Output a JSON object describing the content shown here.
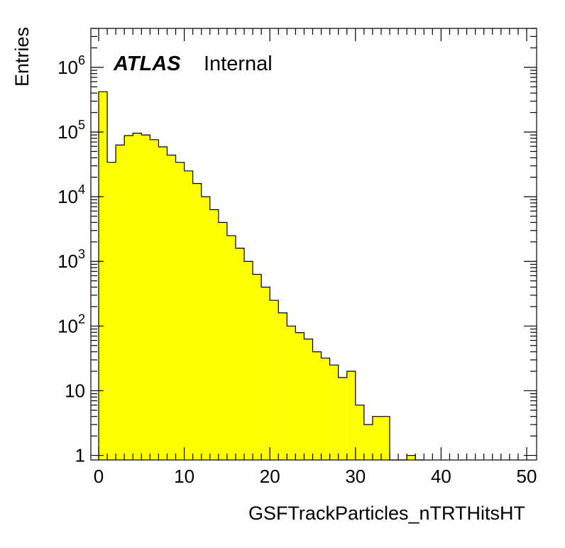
{
  "chart_data": {
    "type": "bar",
    "histogram": true,
    "fill_color": "#ffff00",
    "line_color": "#000000",
    "xlabel": "GSFTrackParticles_nTRTHitsHT",
    "ylabel": "Entries",
    "xlim": [
      0,
      50
    ],
    "ylim": [
      0.85,
      4000000
    ],
    "log_y": true,
    "grid": false,
    "bin_width": 1,
    "x_ticks": [
      "0",
      "10",
      "20",
      "30",
      "40",
      "50"
    ],
    "y_ticks": [
      {
        "value": 1,
        "base": "1",
        "exp": ""
      },
      {
        "value": 10,
        "base": "10",
        "exp": ""
      },
      {
        "value": 100,
        "base": "10",
        "exp": "2"
      },
      {
        "value": 1000,
        "base": "10",
        "exp": "3"
      },
      {
        "value": 10000,
        "base": "10",
        "exp": "4"
      },
      {
        "value": 100000,
        "base": "10",
        "exp": "5"
      },
      {
        "value": 1000000,
        "base": "10",
        "exp": "6"
      }
    ],
    "bins": [
      {
        "x": 0,
        "value": 420000
      },
      {
        "x": 1,
        "value": 34000
      },
      {
        "x": 2,
        "value": 63000
      },
      {
        "x": 3,
        "value": 88000
      },
      {
        "x": 4,
        "value": 96000
      },
      {
        "x": 5,
        "value": 90000
      },
      {
        "x": 6,
        "value": 76000
      },
      {
        "x": 7,
        "value": 59000
      },
      {
        "x": 8,
        "value": 44000
      },
      {
        "x": 9,
        "value": 34000
      },
      {
        "x": 10,
        "value": 25000
      },
      {
        "x": 11,
        "value": 16000
      },
      {
        "x": 12,
        "value": 10000
      },
      {
        "x": 13,
        "value": 6300
      },
      {
        "x": 14,
        "value": 4000
      },
      {
        "x": 15,
        "value": 2500
      },
      {
        "x": 16,
        "value": 1600
      },
      {
        "x": 17,
        "value": 1000
      },
      {
        "x": 18,
        "value": 630
      },
      {
        "x": 19,
        "value": 400
      },
      {
        "x": 20,
        "value": 250
      },
      {
        "x": 21,
        "value": 160
      },
      {
        "x": 22,
        "value": 100
      },
      {
        "x": 23,
        "value": 79
      },
      {
        "x": 24,
        "value": 63
      },
      {
        "x": 25,
        "value": 40
      },
      {
        "x": 26,
        "value": 32
      },
      {
        "x": 27,
        "value": 25
      },
      {
        "x": 28,
        "value": 16
      },
      {
        "x": 29,
        "value": 20
      },
      {
        "x": 30,
        "value": 6
      },
      {
        "x": 31,
        "value": 3
      },
      {
        "x": 32,
        "value": 4
      },
      {
        "x": 33,
        "value": 4
      },
      {
        "x": 34,
        "value": 0
      },
      {
        "x": 35,
        "value": 0
      },
      {
        "x": 36,
        "value": 1
      },
      {
        "x": 37,
        "value": 0
      }
    ],
    "annotations": {
      "experiment": "ATLAS",
      "status": "Internal"
    }
  }
}
